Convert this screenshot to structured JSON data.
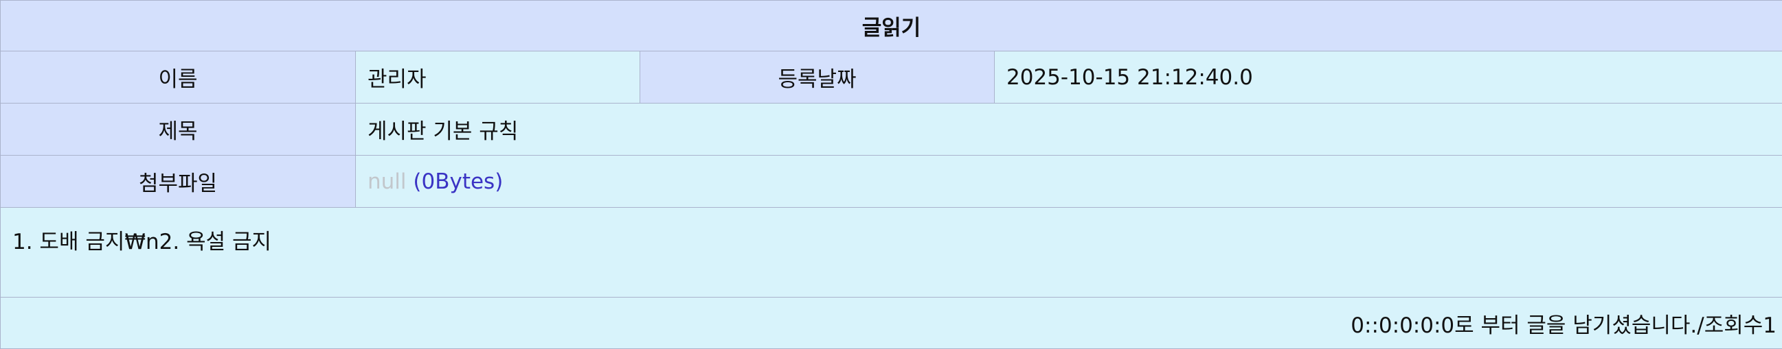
{
  "header": {
    "title": "글읽기"
  },
  "fields": {
    "name_label": "이름",
    "name_value": "관리자",
    "date_label": "등록날짜",
    "date_value": "2025-10-15 21:12:40.0",
    "subject_label": "제목",
    "subject_value": "게시판 기본 규칙",
    "attachment_label": "첨부파일",
    "attachment_name": "null",
    "attachment_size": "(0Bytes)"
  },
  "content": {
    "body": "1. 도배 금지₩n2. 욕설 금지"
  },
  "footer": {
    "meta": "0::0:0:0:0로 부터 글을 남기셨습니다./조회수1"
  },
  "colors": {
    "header_bg": "#d4e0fc",
    "value_bg": "#d8f3fb",
    "link": "#3a33c4",
    "muted": "#c2c7cc"
  }
}
